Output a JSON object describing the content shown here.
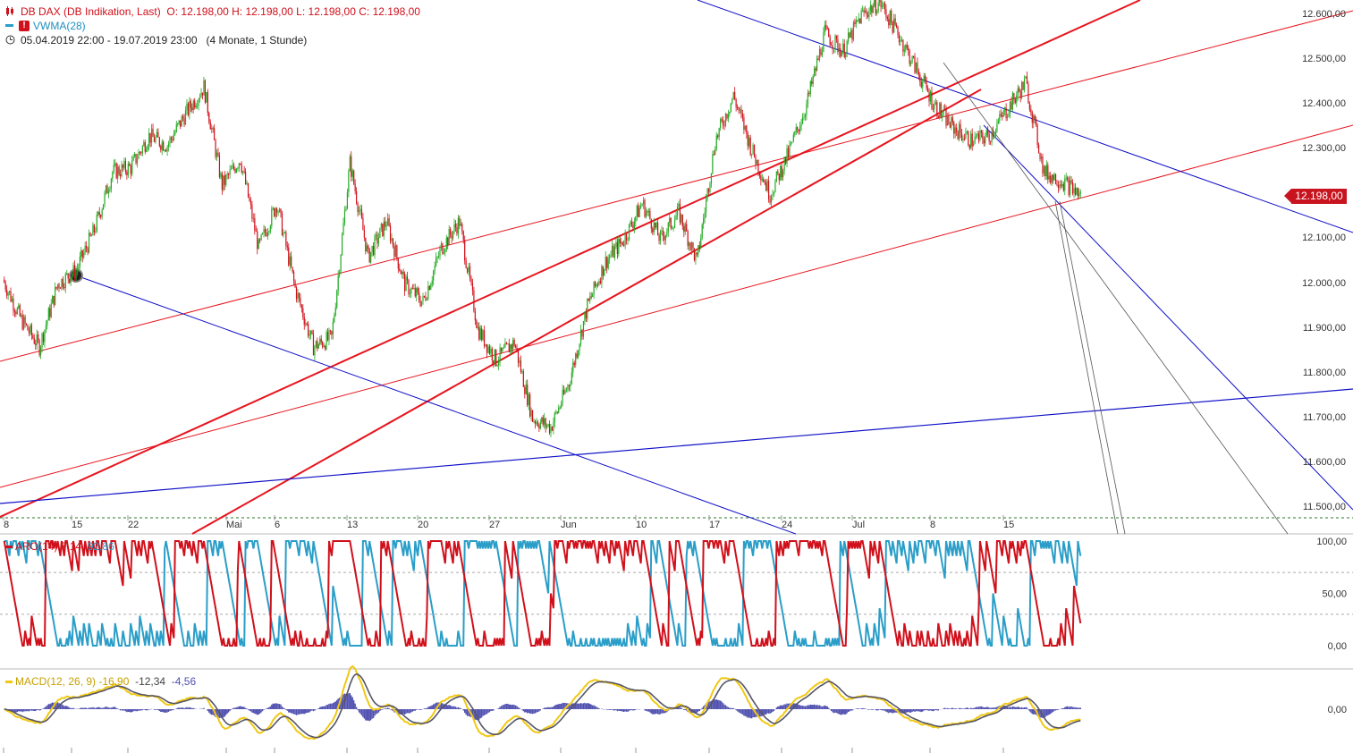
{
  "header": {
    "instrument": "DB DAX (DB Indikation, Last)",
    "ohlc": "O: 12.198,00  H: 12.198,00  L: 12.198,00  C: 12.198,00",
    "indicator": "VWMA(28)",
    "warning_mark": "!",
    "range": "05.04.2019 22:00 - 19.07.2019 23:00",
    "period": "(4 Monate, 1 Stunde)"
  },
  "last_price_label": "12.198,00",
  "colors": {
    "up": "#22aa22",
    "down": "#d0101b",
    "trend_red": "#e8141e",
    "trend_blue": "#1010c8",
    "aroon_up": "#d0101b",
    "aroon_down": "#2a9ec8",
    "macd_line": "#f0c814",
    "signal_line": "#555566",
    "histogram": "#5050b0"
  },
  "aroon": {
    "label": "ARO(14)",
    "v1": "7,14",
    "v2": "92,86",
    "y_labels": [
      "100,00",
      "50,00",
      "0,00"
    ]
  },
  "macd": {
    "label": "MACD(12, 26, 9)",
    "v1": "-16,90",
    "v2": "-12,34",
    "v3": "-4,56",
    "y_labels": [
      "0,00"
    ]
  },
  "chart_data": {
    "type": "candlestick",
    "title": "DB DAX (DB Indikation, Last)",
    "timeframe": "1 Stunde",
    "x_ticks": [
      "8",
      "15",
      "22",
      "Mai",
      "6",
      "13",
      "20",
      "27",
      "Jun",
      "10",
      "17",
      "24",
      "Jul",
      "8",
      "15"
    ],
    "y_ticks": [
      "12.600,00",
      "12.500,00",
      "12.400,00",
      "12.300,00",
      "12.200,00",
      "12.100,00",
      "12.000,00",
      "11.900,00",
      "11.800,00",
      "11.700,00",
      "11.600,00",
      "11.500,00"
    ],
    "ylim": [
      11470,
      12640
    ],
    "last_close": 12198,
    "close_path": [
      {
        "x": "Apr 05",
        "y": 12010
      },
      {
        "x": "Apr 08",
        "y": 11920
      },
      {
        "x": "Apr 09",
        "y": 11860
      },
      {
        "x": "Apr 12",
        "y": 12000
      },
      {
        "x": "Apr 15",
        "y": 12030
      },
      {
        "x": "Apr 17",
        "y": 12120
      },
      {
        "x": "Apr 19",
        "y": 12250
      },
      {
        "x": "Apr 23",
        "y": 12260
      },
      {
        "x": "Apr 25",
        "y": 12330
      },
      {
        "x": "Apr 29",
        "y": 12310
      },
      {
        "x": "May 02",
        "y": 12380
      },
      {
        "x": "May 03",
        "y": 12440
      },
      {
        "x": "May 06",
        "y": 12220
      },
      {
        "x": "May 07",
        "y": 12280
      },
      {
        "x": "May 09",
        "y": 12080
      },
      {
        "x": "May 10",
        "y": 12180
      },
      {
        "x": "May 13",
        "y": 11990
      },
      {
        "x": "May 14",
        "y": 11860
      },
      {
        "x": "May 15",
        "y": 11880
      },
      {
        "x": "May 17",
        "y": 12270
      },
      {
        "x": "May 20",
        "y": 12060
      },
      {
        "x": "May 21",
        "y": 12140
      },
      {
        "x": "May 23",
        "y": 12000
      },
      {
        "x": "May 24",
        "y": 11960
      },
      {
        "x": "May 27",
        "y": 12080
      },
      {
        "x": "May 28",
        "y": 12140
      },
      {
        "x": "May 29",
        "y": 11900
      },
      {
        "x": "May 30",
        "y": 11830
      },
      {
        "x": "May 31",
        "y": 11870
      },
      {
        "x": "Jun 03",
        "y": 11700
      },
      {
        "x": "Jun 04",
        "y": 11680
      },
      {
        "x": "Jun 05",
        "y": 11780
      },
      {
        "x": "Jun 06",
        "y": 11950
      },
      {
        "x": "Jun 07",
        "y": 12050
      },
      {
        "x": "Jun 10",
        "y": 12100
      },
      {
        "x": "Jun 11",
        "y": 12180
      },
      {
        "x": "Jun 12",
        "y": 12100
      },
      {
        "x": "Jun 14",
        "y": 12160
      },
      {
        "x": "Jun 17",
        "y": 12050
      },
      {
        "x": "Jun 18",
        "y": 12320
      },
      {
        "x": "Jun 19",
        "y": 12420
      },
      {
        "x": "Jun 20",
        "y": 12300
      },
      {
        "x": "Jun 24",
        "y": 12200
      },
      {
        "x": "Jun 26",
        "y": 12290
      },
      {
        "x": "Jun 28",
        "y": 12400
      },
      {
        "x": "Jul 01",
        "y": 12560
      },
      {
        "x": "Jul 02",
        "y": 12520
      },
      {
        "x": "Jul 03",
        "y": 12600
      },
      {
        "x": "Jul 04",
        "y": 12630
      },
      {
        "x": "Jul 05",
        "y": 12560
      },
      {
        "x": "Jul 08",
        "y": 12480
      },
      {
        "x": "Jul 09",
        "y": 12400
      },
      {
        "x": "Jul 10",
        "y": 12350
      },
      {
        "x": "Jul 11",
        "y": 12320
      },
      {
        "x": "Jul 12",
        "y": 12330
      },
      {
        "x": "Jul 15",
        "y": 12390
      },
      {
        "x": "Jul 16",
        "y": 12450
      },
      {
        "x": "Jul 17",
        "y": 12250
      },
      {
        "x": "Jul 18",
        "y": 12230
      },
      {
        "x": "Jul 19",
        "y": 12198
      }
    ]
  }
}
